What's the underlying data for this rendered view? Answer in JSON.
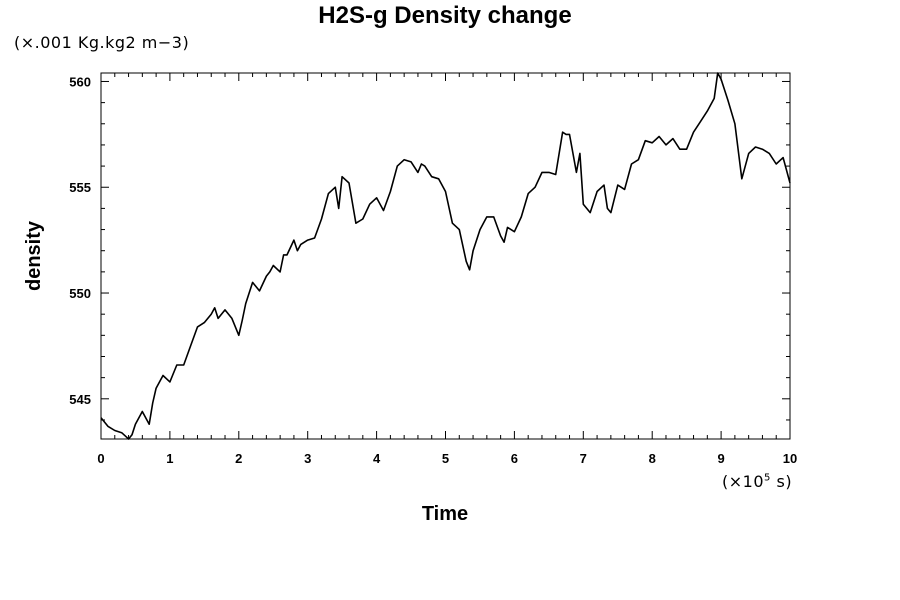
{
  "chart_data": {
    "type": "line",
    "title": "H2S-g Density change",
    "xlabel": "Time",
    "ylabel": "density",
    "x_unit_prefix": "(×10",
    "x_unit_exp": "5",
    "x_unit_suffix": " s)",
    "y_unit": "(×.001 Kg.kg2 m−3)",
    "xlim": [
      0,
      10
    ],
    "ylim": [
      543.1,
      560.4
    ],
    "x_ticks": [
      0,
      1,
      2,
      3,
      4,
      5,
      6,
      7,
      8,
      9,
      10
    ],
    "y_ticks": [
      545,
      550,
      555,
      560
    ],
    "grid": false,
    "series": [
      {
        "x": [
          0.0,
          0.1,
          0.2,
          0.3,
          0.4,
          0.45,
          0.5,
          0.6,
          0.7,
          0.75,
          0.8,
          0.9,
          1.0,
          1.1,
          1.2,
          1.3,
          1.4,
          1.5,
          1.6,
          1.65,
          1.7,
          1.8,
          1.9,
          2.0,
          2.05,
          2.1,
          2.2,
          2.3,
          2.4,
          2.45,
          2.5,
          2.6,
          2.65,
          2.7,
          2.8,
          2.85,
          2.9,
          3.0,
          3.1,
          3.2,
          3.3,
          3.4,
          3.45,
          3.5,
          3.6,
          3.7,
          3.8,
          3.9,
          4.0,
          4.1,
          4.2,
          4.3,
          4.4,
          4.5,
          4.6,
          4.65,
          4.7,
          4.8,
          4.9,
          5.0,
          5.1,
          5.2,
          5.3,
          5.35,
          5.4,
          5.5,
          5.6,
          5.7,
          5.8,
          5.85,
          5.9,
          6.0,
          6.1,
          6.2,
          6.3,
          6.4,
          6.5,
          6.6,
          6.7,
          6.75,
          6.8,
          6.9,
          6.95,
          7.0,
          7.1,
          7.2,
          7.3,
          7.35,
          7.4,
          7.5,
          7.6,
          7.7,
          7.8,
          7.9,
          8.0,
          8.1,
          8.2,
          8.3,
          8.4,
          8.5,
          8.6,
          8.7,
          8.8,
          8.9,
          8.95,
          9.0,
          9.1,
          9.2,
          9.3,
          9.4,
          9.5,
          9.6,
          9.7,
          9.8,
          9.9,
          10.0
        ],
        "y": [
          544.1,
          543.7,
          543.5,
          543.4,
          543.1,
          543.3,
          543.8,
          544.4,
          543.8,
          544.8,
          545.5,
          546.1,
          545.8,
          546.6,
          546.6,
          547.5,
          548.4,
          548.6,
          549.0,
          549.3,
          548.8,
          549.2,
          548.8,
          548.0,
          548.7,
          549.5,
          550.5,
          550.1,
          550.8,
          551.0,
          551.3,
          551.0,
          551.8,
          551.8,
          552.5,
          552.0,
          552.3,
          552.5,
          552.6,
          553.5,
          554.7,
          555.0,
          554.0,
          555.5,
          555.2,
          553.3,
          553.5,
          554.2,
          554.5,
          553.9,
          554.8,
          556.0,
          556.3,
          556.2,
          555.7,
          556.1,
          556.0,
          555.5,
          555.4,
          554.8,
          553.3,
          553.0,
          551.5,
          551.1,
          552.0,
          553.0,
          553.6,
          553.6,
          552.7,
          552.4,
          553.1,
          552.9,
          553.6,
          554.7,
          555.0,
          555.7,
          555.7,
          555.6,
          557.6,
          557.5,
          557.5,
          555.7,
          556.6,
          554.2,
          553.8,
          554.8,
          555.1,
          554.0,
          553.8,
          555.1,
          554.9,
          556.1,
          556.3,
          557.2,
          557.1,
          557.4,
          557.0,
          557.3,
          556.8,
          556.8,
          557.6,
          558.1,
          558.6,
          559.2,
          560.4,
          560.1,
          559.1,
          558.0,
          555.4,
          556.6,
          556.9,
          556.8,
          556.6,
          556.1,
          556.4,
          555.2
        ]
      }
    ]
  }
}
